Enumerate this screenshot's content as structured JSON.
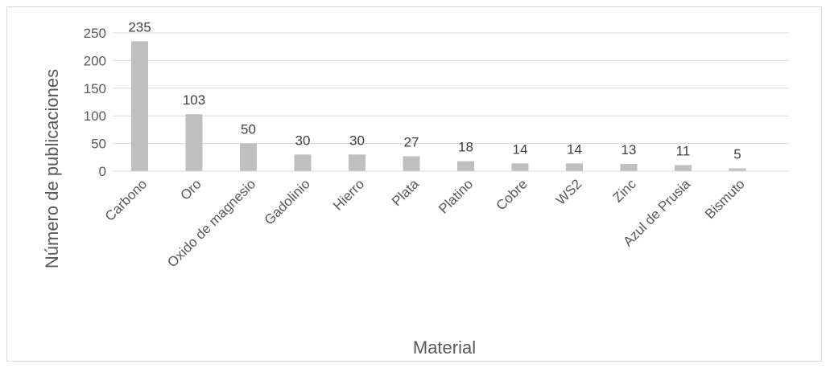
{
  "chart_data": {
    "type": "bar",
    "title": "",
    "xlabel": "Material",
    "ylabel": "Número de publicaciones",
    "categories": [
      "Carbono",
      "Oro",
      "Oxido de magnesio",
      "Gadolinio",
      "Hierro",
      "Plata",
      "Platino",
      "Cobre",
      "WS2",
      "Zinc",
      "Azul de Prusia",
      "Bismuto"
    ],
    "values": [
      235,
      103,
      50,
      30,
      30,
      27,
      18,
      14,
      14,
      13,
      11,
      5
    ],
    "yticks": [
      "0",
      "50",
      "100",
      "150",
      "200",
      "250"
    ],
    "ylim": [
      0,
      250
    ],
    "grid": true,
    "legend": "none",
    "bar_color": "#bfbfbf",
    "grid_color": "#d9d9d9"
  }
}
